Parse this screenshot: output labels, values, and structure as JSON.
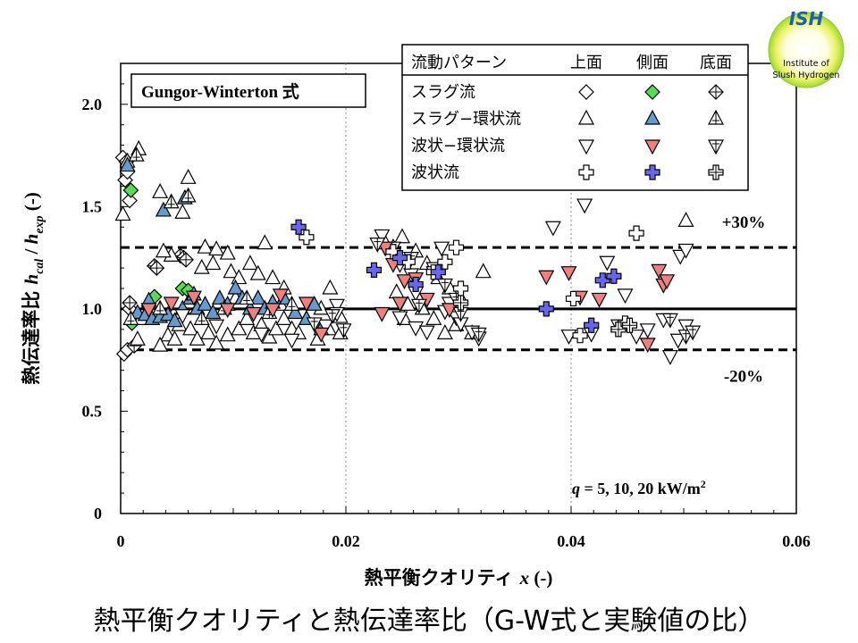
{
  "logo": {
    "line1": "ISH",
    "line2": "Institute of",
    "line3": "Slush Hydrogen"
  },
  "caption": "熱平衡クオリティと熱伝達率比（G-W式と実験値の比）",
  "chart_data": {
    "type": "scatter",
    "title": "Gungor-Winterton 式",
    "condition": {
      "symbol": "q",
      "text": " = 5, 10, 20 kW/m",
      "sup": "2"
    },
    "xlabel": {
      "text": "熱平衡クオリティ ",
      "var": "x",
      "unit": " (-)"
    },
    "ylabel": {
      "text": "熱伝達率比  ",
      "num": "h",
      "num_sub": "cal",
      "sep": " / ",
      "den": "h",
      "den_sub": "exp",
      "unit": " (-)"
    },
    "xlim": [
      0,
      0.06
    ],
    "ylim": [
      0,
      2.2
    ],
    "x_ticks": [
      {
        "v": 0,
        "label": "0"
      },
      {
        "v": 0.02,
        "label": "0.02"
      },
      {
        "v": 0.04,
        "label": "0.04"
      },
      {
        "v": 0.06,
        "label": "0.06"
      }
    ],
    "y_ticks": [
      {
        "v": 0,
        "label": "0"
      },
      {
        "v": 0.5,
        "label": "0.5"
      },
      {
        "v": 1.0,
        "label": "1.0"
      },
      {
        "v": 1.5,
        "label": "1.5"
      },
      {
        "v": 2.0,
        "label": "2.0"
      }
    ],
    "grid_x": [
      0.02,
      0.04
    ],
    "reference_lines": [
      {
        "y": 1.0,
        "style": "solid"
      },
      {
        "y": 1.3,
        "style": "dashed",
        "label": "+30%"
      },
      {
        "y": 0.8,
        "style": "dashed",
        "label": "-20%"
      }
    ],
    "legend": {
      "header": [
        "流動パターン",
        "上面",
        "側面",
        "底面"
      ],
      "rows": [
        "スラグ流",
        "スラグ−環状流",
        "波状−環状流",
        "波状流"
      ],
      "placement": "top-right"
    },
    "series": [
      {
        "pattern": "スラグ流",
        "position": "上面",
        "marker": "diamond",
        "fill": "#ffffff",
        "points": [
          [
            0.0002,
            1.74
          ],
          [
            0.0004,
            1.63
          ],
          [
            0.0006,
            1.67
          ],
          [
            0.0008,
            1.53
          ],
          [
            0.0003,
            0.78
          ],
          [
            0.0006,
            0.8
          ],
          [
            0.0008,
            1.0
          ]
        ]
      },
      {
        "pattern": "スラグ流",
        "position": "側面",
        "marker": "diamond",
        "fill": "#55dd55",
        "points": [
          [
            0.0009,
            1.58
          ],
          [
            0.001,
            0.93
          ],
          [
            0.003,
            1.06
          ],
          [
            0.0055,
            1.1
          ],
          [
            0.006,
            1.09
          ]
        ]
      },
      {
        "pattern": "スラグ流",
        "position": "底面",
        "marker": "diamond-cross",
        "fill": "#ffffff",
        "points": [
          [
            0.0005,
            1.72
          ],
          [
            0.0008,
            1.03
          ],
          [
            0.003,
            1.21
          ],
          [
            0.0032,
            1.2
          ],
          [
            0.0053,
            1.26
          ],
          [
            0.0056,
            1.25
          ],
          [
            0.0058,
            1.24
          ],
          [
            0.0012,
            0.82
          ]
        ]
      },
      {
        "pattern": "スラグ−環状流",
        "position": "上面",
        "marker": "triangle-up",
        "fill": "#ffffff",
        "points": [
          [
            0.0002,
            1.46
          ],
          [
            0.0006,
            1.72
          ],
          [
            0.0016,
            1.78
          ],
          [
            0.0035,
            1.57
          ],
          [
            0.0055,
            1.47
          ],
          [
            0.006,
            1.64
          ],
          [
            0.0075,
            1.3
          ],
          [
            0.0085,
            1.29
          ],
          [
            0.0095,
            1.27
          ],
          [
            0.0128,
            1.32
          ],
          [
            0.0045,
            1.26
          ],
          [
            0.0038,
            1.28
          ],
          [
            0.0072,
            1.2
          ],
          [
            0.0082,
            1.22
          ],
          [
            0.0098,
            1.18
          ],
          [
            0.0105,
            1.15
          ],
          [
            0.0115,
            1.22
          ],
          [
            0.0122,
            1.17
          ],
          [
            0.0135,
            1.15
          ],
          [
            0.0145,
            1.1
          ],
          [
            0.0178,
            1.0
          ],
          [
            0.0186,
            1.1
          ],
          [
            0.0195,
            0.96
          ],
          [
            0.0042,
            0.87
          ],
          [
            0.0048,
            0.85
          ],
          [
            0.0052,
            0.92
          ],
          [
            0.0062,
            0.9
          ],
          [
            0.0068,
            0.85
          ],
          [
            0.0078,
            0.88
          ],
          [
            0.0085,
            0.83
          ],
          [
            0.0095,
            0.87
          ],
          [
            0.0105,
            0.9
          ],
          [
            0.0112,
            0.95
          ],
          [
            0.0118,
            0.88
          ],
          [
            0.0125,
            0.92
          ],
          [
            0.0132,
            0.86
          ],
          [
            0.0138,
            0.9
          ],
          [
            0.0145,
            0.95
          ],
          [
            0.0152,
            0.9
          ],
          [
            0.0158,
            0.88
          ],
          [
            0.0165,
            0.95
          ],
          [
            0.0175,
            0.85
          ],
          [
            0.0185,
            0.9
          ],
          [
            0.0195,
            0.88
          ],
          [
            0.0035,
            0.82
          ],
          [
            0.0025,
            1.03
          ],
          [
            0.0102,
            1.05
          ],
          [
            0.0142,
            1.02
          ],
          [
            0.0235,
            1.32
          ],
          [
            0.0242,
            1.3
          ],
          [
            0.025,
            1.35
          ],
          [
            0.0262,
            1.28
          ],
          [
            0.0272,
            1.22
          ],
          [
            0.0282,
            1.15
          ],
          [
            0.0292,
            1.1
          ],
          [
            0.0302,
            1.05
          ],
          [
            0.0322,
            1.18
          ],
          [
            0.0245,
            1.08
          ],
          [
            0.0255,
            1.02
          ],
          [
            0.0268,
            1.0
          ],
          [
            0.0278,
            0.95
          ],
          [
            0.0288,
            0.88
          ],
          [
            0.0298,
            0.92
          ],
          [
            0.0312,
            0.88
          ],
          [
            0.0252,
            0.95
          ],
          [
            0.0015,
            0.85
          ],
          [
            0.0018,
            0.95
          ],
          [
            0.0502,
            1.43
          ]
        ]
      },
      {
        "pattern": "スラグ−環状流",
        "position": "側面",
        "marker": "triangle-up",
        "fill": "#6699cc",
        "points": [
          [
            0.0006,
            1.7
          ],
          [
            0.0015,
            0.98
          ],
          [
            0.0022,
            0.97
          ],
          [
            0.0028,
            0.95
          ],
          [
            0.0035,
            0.96
          ],
          [
            0.0042,
            0.97
          ],
          [
            0.0048,
            0.94
          ],
          [
            0.0055,
            1.0
          ],
          [
            0.0062,
            1.05
          ],
          [
            0.0068,
            1.0
          ],
          [
            0.0075,
            1.02
          ],
          [
            0.0082,
            0.98
          ],
          [
            0.0088,
            1.05
          ],
          [
            0.0095,
            1.02
          ],
          [
            0.0102,
            1.1
          ],
          [
            0.0108,
            1.05
          ],
          [
            0.0115,
            1.0
          ],
          [
            0.0122,
            1.05
          ],
          [
            0.0128,
            1.0
          ],
          [
            0.0135,
            1.03
          ],
          [
            0.0145,
            1.05
          ],
          [
            0.0155,
            0.98
          ],
          [
            0.0165,
            0.95
          ],
          [
            0.0172,
            1.02
          ],
          [
            0.0178,
            0.9
          ],
          [
            0.0038,
            1.48
          ],
          [
            0.0057,
            1.54
          ],
          [
            0.0025,
            1.04
          ],
          [
            0.0065,
            1.07
          ]
        ]
      },
      {
        "pattern": "スラグ−環状流",
        "position": "底面",
        "marker": "triangle-up-cross",
        "fill": "#ffffff",
        "points": [
          [
            0.0014,
            1.75
          ],
          [
            0.0045,
            1.52
          ],
          [
            0.006,
            1.55
          ],
          [
            0.0009,
            0.95
          ],
          [
            0.0035,
            1.0
          ],
          [
            0.0072,
            0.95
          ],
          [
            0.0092,
            1.0
          ],
          [
            0.0112,
            1.05
          ],
          [
            0.0132,
            0.98
          ],
          [
            0.0152,
            1.02
          ]
        ]
      },
      {
        "pattern": "波状−環状流",
        "position": "上面",
        "marker": "triangle-down",
        "fill": "#ffffff",
        "points": [
          [
            0.0055,
            0.97
          ],
          [
            0.0085,
            0.92
          ],
          [
            0.0125,
            0.88
          ],
          [
            0.0152,
            0.85
          ],
          [
            0.0182,
            0.92
          ],
          [
            0.0192,
            1.02
          ],
          [
            0.0192,
            0.98
          ],
          [
            0.0232,
            1.36
          ],
          [
            0.0242,
            1.3
          ],
          [
            0.0248,
            1.22
          ],
          [
            0.0258,
            1.17
          ],
          [
            0.0262,
            1.08
          ],
          [
            0.0278,
            1.2
          ],
          [
            0.0285,
            1.3
          ],
          [
            0.0292,
            1.03
          ],
          [
            0.0298,
            0.96
          ],
          [
            0.0302,
            0.93
          ],
          [
            0.0318,
            0.86
          ],
          [
            0.0248,
            0.96
          ],
          [
            0.0262,
            0.91
          ],
          [
            0.0272,
            0.89
          ],
          [
            0.0288,
            0.99
          ],
          [
            0.0312,
            0.89
          ],
          [
            0.0384,
            1.4
          ],
          [
            0.0412,
            1.51
          ],
          [
            0.0432,
            1.23
          ],
          [
            0.0448,
            1.07
          ],
          [
            0.0458,
            0.87
          ],
          [
            0.0468,
            0.9
          ],
          [
            0.0482,
            0.95
          ],
          [
            0.0488,
            0.77
          ],
          [
            0.0497,
            1.26
          ],
          [
            0.0502,
            1.29
          ],
          [
            0.0502,
            0.92
          ],
          [
            0.0495,
            0.85
          ],
          [
            0.0398,
            0.87
          ],
          [
            0.0418,
            0.88
          ],
          [
            0.0442,
            0.92
          ]
        ]
      },
      {
        "pattern": "波状−環状流",
        "position": "側面",
        "marker": "triangle-down",
        "fill": "#f08080",
        "points": [
          [
            0.0025,
            1.0
          ],
          [
            0.0045,
            1.03
          ],
          [
            0.0065,
            1.06
          ],
          [
            0.0095,
            1.0
          ],
          [
            0.0118,
            0.98
          ],
          [
            0.0135,
            1.0
          ],
          [
            0.0142,
            1.07
          ],
          [
            0.0165,
            1.03
          ],
          [
            0.0178,
            0.88
          ],
          [
            0.0235,
            1.3
          ],
          [
            0.0242,
            1.22
          ],
          [
            0.0252,
            1.14
          ],
          [
            0.0262,
            1.15
          ],
          [
            0.0272,
            1.05
          ],
          [
            0.0292,
            1.0
          ],
          [
            0.0232,
            0.98
          ],
          [
            0.0248,
            1.03
          ],
          [
            0.0378,
            1.16
          ],
          [
            0.0398,
            1.18
          ],
          [
            0.0408,
            1.06
          ],
          [
            0.0425,
            1.05
          ],
          [
            0.0468,
            0.83
          ],
          [
            0.0478,
            1.19
          ],
          [
            0.0482,
            1.12
          ],
          [
            0.0485,
            1.14
          ]
        ]
      },
      {
        "pattern": "波状−環状流",
        "position": "底面",
        "marker": "triangle-down-cross",
        "fill": "#ffffff",
        "points": [
          [
            0.0172,
            0.93
          ],
          [
            0.0188,
            0.97
          ],
          [
            0.0198,
            0.9
          ],
          [
            0.0228,
            1.32
          ],
          [
            0.0258,
            1.25
          ],
          [
            0.0278,
            1.18
          ],
          [
            0.0288,
            1.12
          ],
          [
            0.0298,
            1.05
          ],
          [
            0.0265,
            1.02
          ],
          [
            0.0302,
            0.98
          ],
          [
            0.0318,
            0.88
          ],
          [
            0.0488,
            0.95
          ],
          [
            0.0502,
            0.87
          ],
          [
            0.0508,
            0.89
          ]
        ]
      },
      {
        "pattern": "波状流",
        "position": "上面",
        "marker": "plus",
        "fill": "#ffffff",
        "points": [
          [
            0.0165,
            1.35
          ],
          [
            0.0242,
            1.28
          ],
          [
            0.0255,
            1.23
          ],
          [
            0.0278,
            1.18
          ],
          [
            0.0288,
            1.23
          ],
          [
            0.0298,
            1.3
          ],
          [
            0.0302,
            1.1
          ],
          [
            0.0402,
            1.05
          ],
          [
            0.0408,
            0.87
          ],
          [
            0.0448,
            0.93
          ],
          [
            0.0458,
            1.37
          ],
          [
            0.0442,
            0.9
          ]
        ]
      },
      {
        "pattern": "波状流",
        "position": "側面",
        "marker": "plus",
        "fill": "#6666ee",
        "points": [
          [
            0.0158,
            1.4
          ],
          [
            0.0225,
            1.19
          ],
          [
            0.0248,
            1.25
          ],
          [
            0.0262,
            1.12
          ],
          [
            0.0282,
            1.18
          ],
          [
            0.0378,
            1.0
          ],
          [
            0.0418,
            0.92
          ],
          [
            0.0428,
            1.14
          ],
          [
            0.0438,
            1.16
          ]
        ]
      },
      {
        "pattern": "波状流",
        "position": "底面",
        "marker": "plus-cross",
        "fill": "#ffffff",
        "points": [
          [
            0.0302,
            1.03
          ],
          [
            0.0442,
            0.9
          ],
          [
            0.0452,
            0.92
          ]
        ]
      }
    ]
  }
}
